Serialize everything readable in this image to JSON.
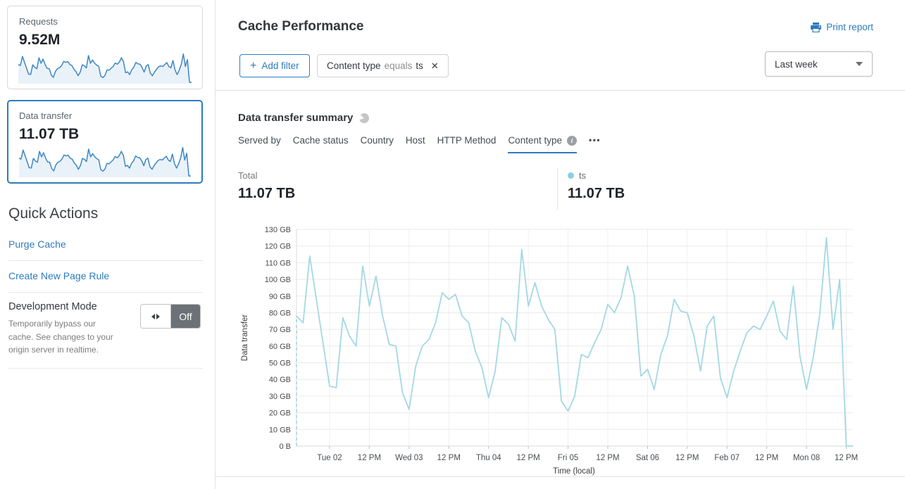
{
  "sidebar": {
    "cards": [
      {
        "label": "Requests",
        "value": "9.52M"
      },
      {
        "label": "Data transfer",
        "value": "11.07 TB"
      }
    ],
    "quick_actions": {
      "title": "Quick Actions",
      "purge_cache_label": "Purge Cache",
      "create_page_rule_label": "Create New Page Rule",
      "development_mode": {
        "title": "Development Mode",
        "description": "Temporarily bypass our cache. See changes to your origin server in realtime.",
        "state_label": "Off"
      }
    }
  },
  "header": {
    "title": "Cache Performance",
    "print_report_label": "Print report"
  },
  "filter_bar": {
    "add_filter_label": "Add filter",
    "chip": {
      "field": "Content type",
      "operator": "equals",
      "value": "ts"
    },
    "time_range": "Last week"
  },
  "summary": {
    "title": "Data transfer summary",
    "tabs": [
      {
        "label": "Served by"
      },
      {
        "label": "Cache status"
      },
      {
        "label": "Country"
      },
      {
        "label": "Host"
      },
      {
        "label": "HTTP Method"
      },
      {
        "label": "Content type",
        "active": true
      }
    ],
    "total": {
      "label": "Total",
      "value": "11.07 TB"
    },
    "legend": [
      {
        "label": "ts",
        "value": "11.07 TB",
        "color": "#8ccfe0"
      }
    ]
  },
  "icons": {
    "plus": "+",
    "close": "✕",
    "more": "•••",
    "info": "i"
  },
  "colors": {
    "accent_blue": "#2e7cbe",
    "line_blue": "#a3d8e4",
    "spark_stroke": "#3e87c4",
    "spark_fill": "#e9f2f9",
    "toggle_gray": "#6b7177"
  },
  "chart_data": {
    "type": "line",
    "title": "Data transfer summary",
    "xlabel": "Time (local)",
    "ylabel": "Data transfer",
    "unit": "GB",
    "ylim": [
      0,
      130
    ],
    "grid": true,
    "start_dashed": true,
    "sample_interval": "2 hours",
    "y_ticks": [
      "0 B",
      "10 GB",
      "20 GB",
      "30 GB",
      "40 GB",
      "50 GB",
      "60 GB",
      "70 GB",
      "80 GB",
      "90 GB",
      "100 GB",
      "110 GB",
      "120 GB",
      "130 GB"
    ],
    "x_ticks": [
      "Tue 02",
      "12 PM",
      "Wed 03",
      "12 PM",
      "Thu 04",
      "12 PM",
      "Fri 05",
      "12 PM",
      "Sat 06",
      "12 PM",
      "Feb 07",
      "12 PM",
      "Mon 08",
      "12 PM"
    ],
    "series": [
      {
        "name": "ts",
        "color": "#a3d8e4",
        "values": [
          78,
          74,
          114,
          88,
          62,
          36,
          35,
          77,
          66,
          60,
          108,
          84,
          102,
          78,
          61,
          60,
          32,
          22,
          48,
          60,
          64,
          74,
          92,
          88,
          91,
          78,
          74,
          57,
          47,
          29,
          45,
          77,
          73,
          63,
          118,
          84,
          98,
          84,
          76,
          70,
          27,
          21,
          30,
          55,
          53,
          62,
          70,
          85,
          80,
          89,
          108,
          90,
          42,
          46,
          34,
          55,
          66,
          88,
          81,
          80,
          66,
          45,
          72,
          78,
          41,
          29,
          45,
          57,
          68,
          72,
          70,
          78,
          87,
          69,
          64,
          96,
          54,
          34,
          53,
          79,
          125,
          70,
          100,
          0,
          0
        ]
      }
    ]
  }
}
